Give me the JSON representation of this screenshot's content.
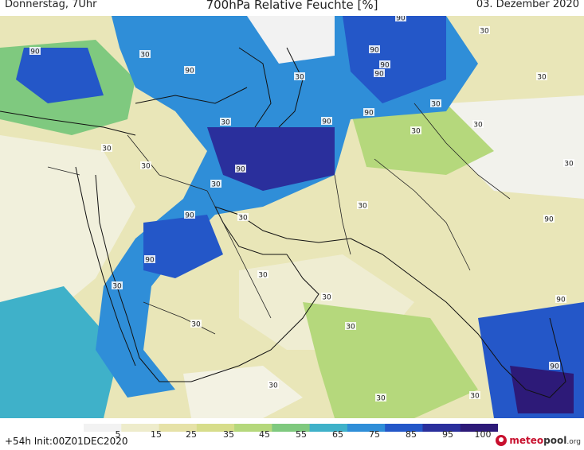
{
  "header": {
    "left": "Donnerstag, 7Uhr",
    "title": "700hPa Relative Feuchte [%]",
    "right": "03. Dezember 2020"
  },
  "footer": {
    "run": "+54h  Init:00Z01DEC2020",
    "logo": {
      "brand_a": "meteo",
      "brand_b": "pool",
      "brand_c": ".org"
    }
  },
  "legend": {
    "ticks": [
      "5",
      "15",
      "25",
      "35",
      "45",
      "55",
      "65",
      "75",
      "85",
      "95",
      "100"
    ],
    "colors": [
      "#f2f2f2",
      "#eeeccc",
      "#e6e2a8",
      "#d7dd8b",
      "#b5d87c",
      "#7fc97f",
      "#3fb1c9",
      "#2f8ed8",
      "#2457c8",
      "#2a2f9c",
      "#2d1a78"
    ]
  },
  "map": {
    "contour_labels": [
      "90",
      "30",
      "90",
      "30",
      "90",
      "90",
      "90",
      "30",
      "90",
      "30",
      "30",
      "30",
      "30",
      "90",
      "90",
      "30",
      "30",
      "90",
      "30",
      "30",
      "90",
      "30",
      "30",
      "30",
      "90",
      "30",
      "30",
      "30",
      "30",
      "30",
      "30",
      "90",
      "30",
      "90",
      "90",
      "30"
    ]
  }
}
